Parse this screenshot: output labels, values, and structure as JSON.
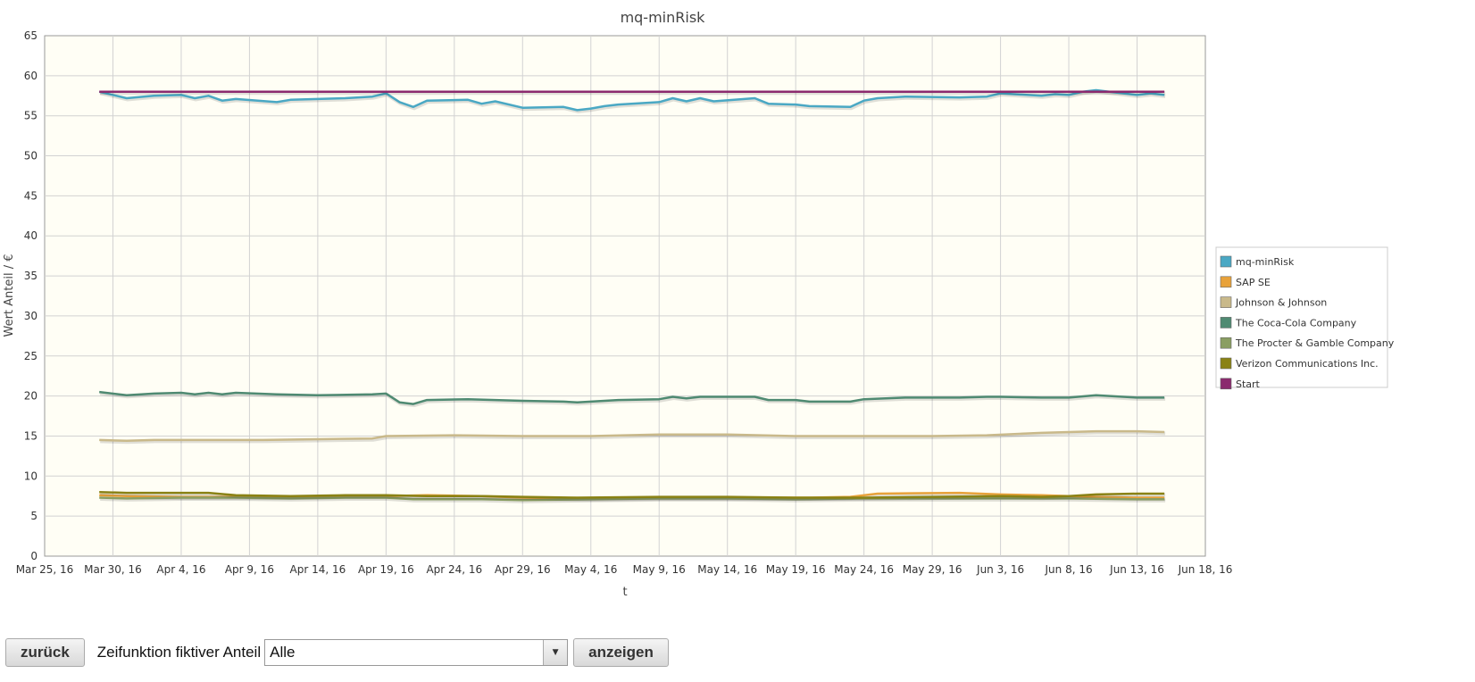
{
  "chart_data": {
    "type": "line",
    "title": "mq-minRisk",
    "xlabel": "t",
    "ylabel": "Wert Anteil / €",
    "ylim": [
      0,
      65
    ],
    "yticks": [
      0,
      5,
      10,
      15,
      20,
      25,
      30,
      35,
      40,
      45,
      50,
      55,
      60,
      65
    ],
    "xlim": [
      "2016-03-25",
      "2016-06-18"
    ],
    "xticks": [
      {
        "date": "2016-03-25",
        "label": "Mar 25, 16"
      },
      {
        "date": "2016-03-30",
        "label": "Mar 30, 16"
      },
      {
        "date": "2016-04-04",
        "label": "Apr 4, 16"
      },
      {
        "date": "2016-04-09",
        "label": "Apr 9, 16"
      },
      {
        "date": "2016-04-14",
        "label": "Apr 14, 16"
      },
      {
        "date": "2016-04-19",
        "label": "Apr 19, 16"
      },
      {
        "date": "2016-04-24",
        "label": "Apr 24, 16"
      },
      {
        "date": "2016-04-29",
        "label": "Apr 29, 16"
      },
      {
        "date": "2016-05-04",
        "label": "May 4, 16"
      },
      {
        "date": "2016-05-09",
        "label": "May 9, 16"
      },
      {
        "date": "2016-05-14",
        "label": "May 14, 16"
      },
      {
        "date": "2016-05-19",
        "label": "May 19, 16"
      },
      {
        "date": "2016-05-24",
        "label": "May 24, 16"
      },
      {
        "date": "2016-05-29",
        "label": "May 29, 16"
      },
      {
        "date": "2016-06-03",
        "label": "Jun 3, 16"
      },
      {
        "date": "2016-06-08",
        "label": "Jun 8, 16"
      },
      {
        "date": "2016-06-13",
        "label": "Jun 13, 16"
      },
      {
        "date": "2016-06-18",
        "label": "Jun 18, 16"
      }
    ],
    "grid": true,
    "legend_position": "right",
    "series": [
      {
        "name": "mq-minRisk",
        "color": "#4aa8c4",
        "points": [
          [
            "2016-03-29",
            58.0
          ],
          [
            "2016-03-31",
            57.2
          ],
          [
            "2016-04-02",
            57.5
          ],
          [
            "2016-04-04",
            57.6
          ],
          [
            "2016-04-05",
            57.2
          ],
          [
            "2016-04-06",
            57.5
          ],
          [
            "2016-04-07",
            56.9
          ],
          [
            "2016-04-08",
            57.1
          ],
          [
            "2016-04-11",
            56.7
          ],
          [
            "2016-04-12",
            57.0
          ],
          [
            "2016-04-14",
            57.1
          ],
          [
            "2016-04-16",
            57.2
          ],
          [
            "2016-04-18",
            57.4
          ],
          [
            "2016-04-19",
            57.8
          ],
          [
            "2016-04-20",
            56.7
          ],
          [
            "2016-04-21",
            56.1
          ],
          [
            "2016-04-22",
            56.9
          ],
          [
            "2016-04-25",
            57.0
          ],
          [
            "2016-04-26",
            56.5
          ],
          [
            "2016-04-27",
            56.8
          ],
          [
            "2016-04-29",
            56.0
          ],
          [
            "2016-05-02",
            56.1
          ],
          [
            "2016-05-03",
            55.7
          ],
          [
            "2016-05-04",
            55.9
          ],
          [
            "2016-05-05",
            56.2
          ],
          [
            "2016-05-06",
            56.4
          ],
          [
            "2016-05-09",
            56.7
          ],
          [
            "2016-05-10",
            57.2
          ],
          [
            "2016-05-11",
            56.8
          ],
          [
            "2016-05-12",
            57.2
          ],
          [
            "2016-05-13",
            56.8
          ],
          [
            "2016-05-16",
            57.2
          ],
          [
            "2016-05-17",
            56.5
          ],
          [
            "2016-05-19",
            56.4
          ],
          [
            "2016-05-20",
            56.2
          ],
          [
            "2016-05-23",
            56.1
          ],
          [
            "2016-05-24",
            56.9
          ],
          [
            "2016-05-25",
            57.2
          ],
          [
            "2016-05-27",
            57.4
          ],
          [
            "2016-05-31",
            57.3
          ],
          [
            "2016-06-02",
            57.4
          ],
          [
            "2016-06-03",
            57.8
          ],
          [
            "2016-06-06",
            57.5
          ],
          [
            "2016-06-07",
            57.7
          ],
          [
            "2016-06-08",
            57.6
          ],
          [
            "2016-06-09",
            58.0
          ],
          [
            "2016-06-10",
            58.2
          ],
          [
            "2016-06-13",
            57.6
          ],
          [
            "2016-06-14",
            57.8
          ],
          [
            "2016-06-15",
            57.6
          ]
        ]
      },
      {
        "name": "SAP SE",
        "color": "#e8a23a",
        "points": [
          [
            "2016-03-29",
            7.6
          ],
          [
            "2016-03-31",
            7.5
          ],
          [
            "2016-04-04",
            7.4
          ],
          [
            "2016-04-08",
            7.4
          ],
          [
            "2016-04-12",
            7.4
          ],
          [
            "2016-04-16",
            7.5
          ],
          [
            "2016-04-19",
            7.5
          ],
          [
            "2016-04-22",
            7.6
          ],
          [
            "2016-04-26",
            7.5
          ],
          [
            "2016-04-29",
            7.3
          ],
          [
            "2016-05-04",
            7.2
          ],
          [
            "2016-05-09",
            7.3
          ],
          [
            "2016-05-13",
            7.3
          ],
          [
            "2016-05-17",
            7.3
          ],
          [
            "2016-05-20",
            7.3
          ],
          [
            "2016-05-23",
            7.4
          ],
          [
            "2016-05-25",
            7.8
          ],
          [
            "2016-05-31",
            7.9
          ],
          [
            "2016-06-03",
            7.7
          ],
          [
            "2016-06-06",
            7.6
          ],
          [
            "2016-06-08",
            7.5
          ],
          [
            "2016-06-10",
            7.4
          ],
          [
            "2016-06-13",
            7.3
          ],
          [
            "2016-06-15",
            7.3
          ]
        ]
      },
      {
        "name": "Johnson & Johnson",
        "color": "#c9b98a",
        "points": [
          [
            "2016-03-29",
            14.5
          ],
          [
            "2016-03-31",
            14.4
          ],
          [
            "2016-04-02",
            14.5
          ],
          [
            "2016-04-06",
            14.5
          ],
          [
            "2016-04-10",
            14.5
          ],
          [
            "2016-04-14",
            14.6
          ],
          [
            "2016-04-18",
            14.7
          ],
          [
            "2016-04-19",
            15.0
          ],
          [
            "2016-04-24",
            15.1
          ],
          [
            "2016-04-29",
            15.0
          ],
          [
            "2016-05-04",
            15.0
          ],
          [
            "2016-05-09",
            15.2
          ],
          [
            "2016-05-14",
            15.2
          ],
          [
            "2016-05-19",
            15.0
          ],
          [
            "2016-05-24",
            15.0
          ],
          [
            "2016-05-29",
            15.0
          ],
          [
            "2016-06-02",
            15.1
          ],
          [
            "2016-06-06",
            15.4
          ],
          [
            "2016-06-08",
            15.5
          ],
          [
            "2016-06-10",
            15.6
          ],
          [
            "2016-06-13",
            15.6
          ],
          [
            "2016-06-15",
            15.5
          ]
        ]
      },
      {
        "name": "The Coca-Cola Company",
        "color": "#4f8a72",
        "points": [
          [
            "2016-03-29",
            20.5
          ],
          [
            "2016-03-31",
            20.1
          ],
          [
            "2016-04-02",
            20.3
          ],
          [
            "2016-04-04",
            20.4
          ],
          [
            "2016-04-05",
            20.2
          ],
          [
            "2016-04-06",
            20.4
          ],
          [
            "2016-04-07",
            20.2
          ],
          [
            "2016-04-08",
            20.4
          ],
          [
            "2016-04-11",
            20.2
          ],
          [
            "2016-04-14",
            20.1
          ],
          [
            "2016-04-18",
            20.2
          ],
          [
            "2016-04-19",
            20.3
          ],
          [
            "2016-04-20",
            19.2
          ],
          [
            "2016-04-21",
            19.0
          ],
          [
            "2016-04-22",
            19.5
          ],
          [
            "2016-04-25",
            19.6
          ],
          [
            "2016-04-27",
            19.5
          ],
          [
            "2016-04-29",
            19.4
          ],
          [
            "2016-05-02",
            19.3
          ],
          [
            "2016-05-03",
            19.2
          ],
          [
            "2016-05-05",
            19.4
          ],
          [
            "2016-05-06",
            19.5
          ],
          [
            "2016-05-09",
            19.6
          ],
          [
            "2016-05-10",
            19.9
          ],
          [
            "2016-05-11",
            19.7
          ],
          [
            "2016-05-12",
            19.9
          ],
          [
            "2016-05-16",
            19.9
          ],
          [
            "2016-05-17",
            19.5
          ],
          [
            "2016-05-19",
            19.5
          ],
          [
            "2016-05-20",
            19.3
          ],
          [
            "2016-05-23",
            19.3
          ],
          [
            "2016-05-24",
            19.6
          ],
          [
            "2016-05-27",
            19.8
          ],
          [
            "2016-05-31",
            19.8
          ],
          [
            "2016-06-02",
            19.9
          ],
          [
            "2016-06-03",
            19.9
          ],
          [
            "2016-06-06",
            19.8
          ],
          [
            "2016-06-08",
            19.8
          ],
          [
            "2016-06-10",
            20.1
          ],
          [
            "2016-06-13",
            19.8
          ],
          [
            "2016-06-15",
            19.8
          ]
        ]
      },
      {
        "name": "The Procter & Gamble Company",
        "color": "#8a9e62",
        "points": [
          [
            "2016-03-29",
            7.3
          ],
          [
            "2016-03-31",
            7.2
          ],
          [
            "2016-04-04",
            7.3
          ],
          [
            "2016-04-08",
            7.3
          ],
          [
            "2016-04-12",
            7.2
          ],
          [
            "2016-04-16",
            7.3
          ],
          [
            "2016-04-19",
            7.3
          ],
          [
            "2016-04-21",
            7.1
          ],
          [
            "2016-04-26",
            7.1
          ],
          [
            "2016-04-29",
            7.0
          ],
          [
            "2016-05-04",
            7.1
          ],
          [
            "2016-05-09",
            7.2
          ],
          [
            "2016-05-14",
            7.2
          ],
          [
            "2016-05-19",
            7.1
          ],
          [
            "2016-05-24",
            7.2
          ],
          [
            "2016-05-29",
            7.2
          ],
          [
            "2016-06-03",
            7.2
          ],
          [
            "2016-06-08",
            7.2
          ],
          [
            "2016-06-13",
            7.1
          ],
          [
            "2016-06-15",
            7.1
          ]
        ]
      },
      {
        "name": "Verizon Communications Inc.",
        "color": "#8a8214",
        "points": [
          [
            "2016-03-29",
            8.0
          ],
          [
            "2016-03-31",
            7.9
          ],
          [
            "2016-04-04",
            7.9
          ],
          [
            "2016-04-06",
            7.9
          ],
          [
            "2016-04-08",
            7.6
          ],
          [
            "2016-04-12",
            7.5
          ],
          [
            "2016-04-16",
            7.6
          ],
          [
            "2016-04-19",
            7.6
          ],
          [
            "2016-04-22",
            7.5
          ],
          [
            "2016-04-26",
            7.5
          ],
          [
            "2016-04-29",
            7.4
          ],
          [
            "2016-05-03",
            7.3
          ],
          [
            "2016-05-09",
            7.4
          ],
          [
            "2016-05-14",
            7.4
          ],
          [
            "2016-05-19",
            7.3
          ],
          [
            "2016-05-24",
            7.3
          ],
          [
            "2016-05-29",
            7.4
          ],
          [
            "2016-06-03",
            7.5
          ],
          [
            "2016-06-06",
            7.4
          ],
          [
            "2016-06-08",
            7.5
          ],
          [
            "2016-06-10",
            7.7
          ],
          [
            "2016-06-13",
            7.8
          ],
          [
            "2016-06-15",
            7.8
          ]
        ]
      },
      {
        "name": "Start",
        "color": "#8b2a6e",
        "points": [
          [
            "2016-03-29",
            58.0
          ],
          [
            "2016-06-15",
            58.0
          ]
        ]
      }
    ]
  },
  "controls": {
    "back_label": "zurück",
    "time_function_label": "Zeifunktion fiktiver Anteil",
    "time_function_value": "Alle",
    "show_label": "anzeigen"
  }
}
